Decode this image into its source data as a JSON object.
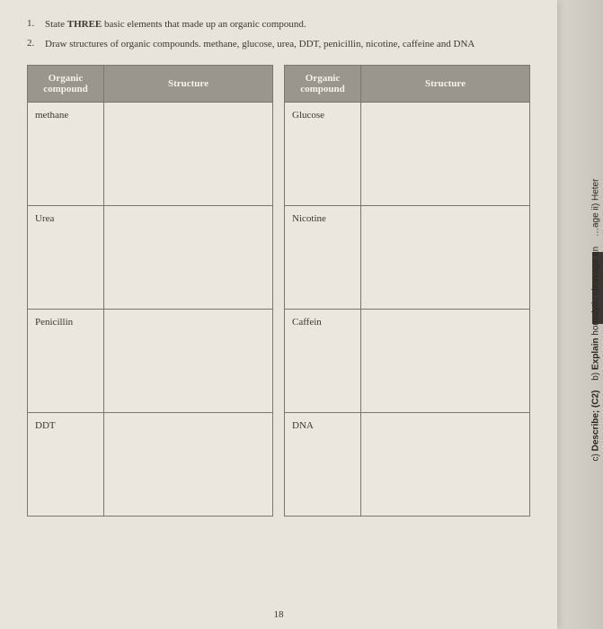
{
  "questions": {
    "q1": {
      "num": "1.",
      "text_before": "State ",
      "bold_word": "THREE",
      "text_after": " basic elements that made up an organic compound."
    },
    "q2": {
      "num": "2.",
      "text": "Draw structures of organic compounds. methane, glucose, urea, DDT, penicillin, nicotine, caffeine and DNA"
    }
  },
  "table_left": {
    "header_name": "Organic compound",
    "header_structure": "Structure",
    "rows": [
      {
        "name": "methane"
      },
      {
        "name": "Urea"
      },
      {
        "name": "Penicillin"
      },
      {
        "name": "DDT"
      }
    ]
  },
  "table_right": {
    "header_name": "Organic compound",
    "header_structure": "Structure",
    "rows": [
      {
        "name": "Glucose"
      },
      {
        "name": "Nicotine"
      },
      {
        "name": "Caffein"
      },
      {
        "name": "DNA"
      }
    ]
  },
  "page_number": "18",
  "side": {
    "line1_prefix": "b) ",
    "line1_bold": "Explain",
    "line1_rest": " homolytic cleavage an",
    "line1_extra": "…age ii) Heter",
    "line2_prefix": "c) ",
    "line2_bold": "Describe; (C2)"
  }
}
